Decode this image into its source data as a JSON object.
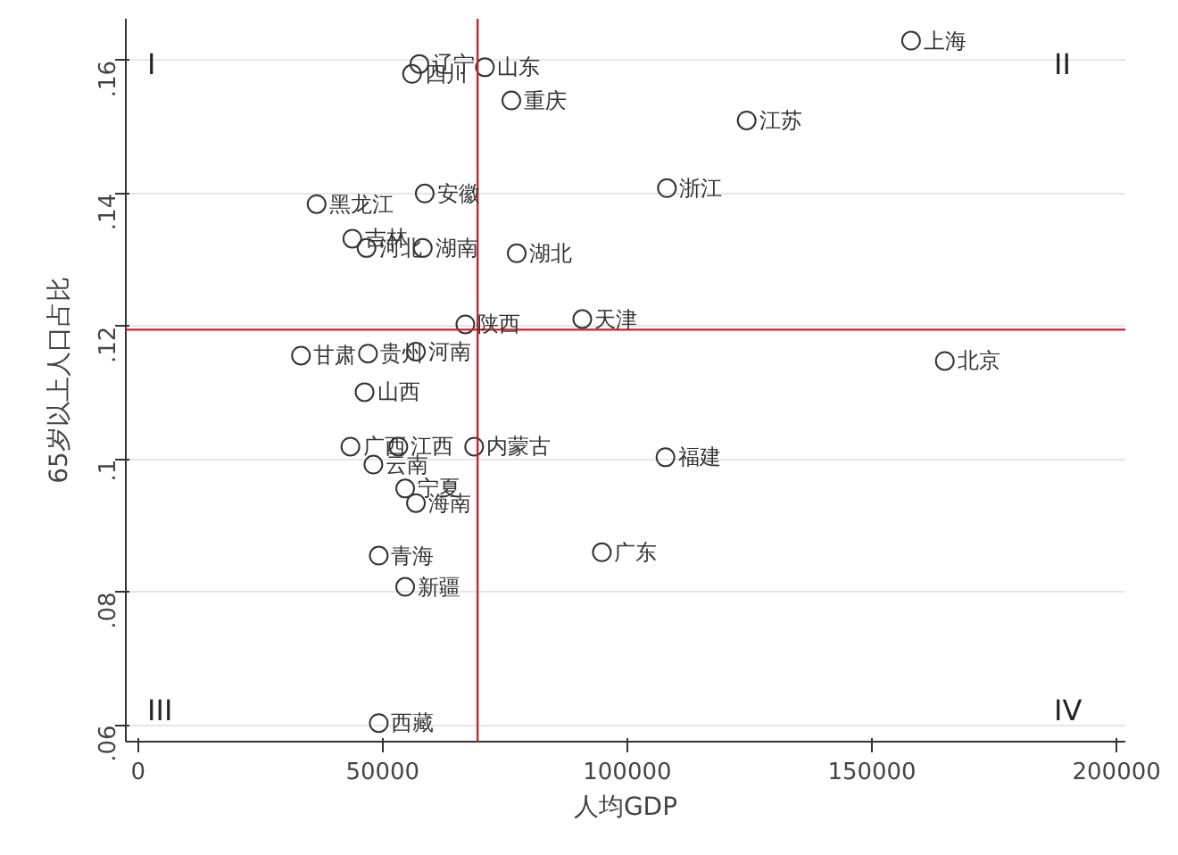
{
  "chart_data": {
    "type": "scatter",
    "xlabel": "人均GDP",
    "ylabel": "65岁以上人口占比",
    "x": [
      158000,
      57500,
      56000,
      70900,
      76300,
      124400,
      108100,
      58600,
      36500,
      43800,
      46700,
      58200,
      77400,
      66900,
      90800,
      164900,
      33300,
      47000,
      56800,
      46300,
      43400,
      53200,
      68700,
      107800,
      48100,
      54600,
      56800,
      94800,
      49200,
      54600,
      49200
    ],
    "series": [
      {
        "color": "#333333",
        "values": [
          0.163,
          0.1595,
          0.158,
          0.159,
          0.154,
          0.151,
          0.1408,
          0.14,
          0.1384,
          0.1332,
          0.1318,
          0.1318,
          0.131,
          0.1203,
          0.1211,
          0.1148,
          0.1156,
          0.1159,
          0.1162,
          0.1101,
          0.1019,
          0.1019,
          0.1019,
          0.1003,
          0.0992,
          0.0956,
          0.0934,
          0.086,
          0.0855,
          0.0808,
          0.0603
        ]
      }
    ],
    "marker": "circle",
    "xlim": [
      -2500,
      201800
    ],
    "ylim": [
      0.0575,
      0.1663
    ],
    "xticks": [
      0,
      50000,
      100000,
      150000,
      200000
    ],
    "yticks": [
      {
        "value": 0.06,
        "label": ".06"
      },
      {
        "value": 0.08,
        "label": ".08"
      },
      {
        "value": 0.1,
        "label": ".1"
      },
      {
        "value": 0.12,
        "label": ".12"
      },
      {
        "value": 0.14,
        "label": ".14"
      },
      {
        "value": 0.16,
        "label": ".16"
      }
    ],
    "grid": "y",
    "ref_lines": [
      {
        "axis": "x",
        "value": 69400,
        "color": "#c0262d"
      },
      {
        "axis": "y",
        "value": 0.1195,
        "color": "#c0262d"
      }
    ],
    "annotations": [
      "I",
      "II",
      "III",
      "IV",
      {
        "text": "上海",
        "x": 158000,
        "y": 0.163
      },
      {
        "text": "辽宁",
        "x": 57500,
        "y": 0.1595
      },
      {
        "text": "四川",
        "x": 56000,
        "y": 0.158
      },
      {
        "text": "山东",
        "x": 70900,
        "y": 0.159
      },
      {
        "text": "重庆",
        "x": 76300,
        "y": 0.154
      },
      {
        "text": "江苏",
        "x": 124400,
        "y": 0.151
      },
      {
        "text": "浙江",
        "x": 108100,
        "y": 0.1408
      },
      {
        "text": "安徽",
        "x": 58600,
        "y": 0.14
      },
      {
        "text": "黑龙江",
        "x": 36500,
        "y": 0.1384
      },
      {
        "text": "吉林",
        "x": 43800,
        "y": 0.1332
      },
      {
        "text": "河北",
        "x": 46700,
        "y": 0.1318
      },
      {
        "text": "湖南",
        "x": 58200,
        "y": 0.1318
      },
      {
        "text": "湖北",
        "x": 77400,
        "y": 0.131
      },
      {
        "text": "陕西",
        "x": 66900,
        "y": 0.1203
      },
      {
        "text": "天津",
        "x": 90800,
        "y": 0.1211
      },
      {
        "text": "北京",
        "x": 164900,
        "y": 0.1148
      },
      {
        "text": "甘肃",
        "x": 33300,
        "y": 0.1156
      },
      {
        "text": "贵州",
        "x": 47000,
        "y": 0.1159
      },
      {
        "text": "河南",
        "x": 56800,
        "y": 0.1162
      },
      {
        "text": "山西",
        "x": 46300,
        "y": 0.1101
      },
      {
        "text": "广西",
        "x": 43400,
        "y": 0.1019
      },
      {
        "text": "江西",
        "x": 53200,
        "y": 0.1019
      },
      {
        "text": "内蒙古",
        "x": 68700,
        "y": 0.1019
      },
      {
        "text": "福建",
        "x": 107800,
        "y": 0.1003
      },
      {
        "text": "云南",
        "x": 48100,
        "y": 0.0992
      },
      {
        "text": "宁夏",
        "x": 54600,
        "y": 0.0956
      },
      {
        "text": "海南",
        "x": 56800,
        "y": 0.0934
      },
      {
        "text": "广东",
        "x": 94800,
        "y": 0.086
      },
      {
        "text": "青海",
        "x": 49200,
        "y": 0.0855
      },
      {
        "text": "新疆",
        "x": 54600,
        "y": 0.0808
      },
      {
        "text": "西藏",
        "x": 49200,
        "y": 0.0603
      }
    ]
  }
}
